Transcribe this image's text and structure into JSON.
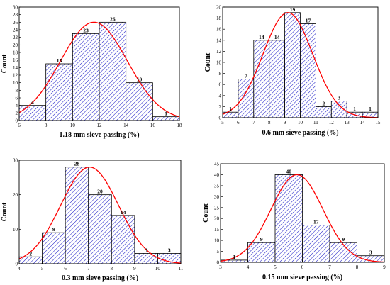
{
  "chart_data": [
    {
      "type": "bar",
      "xlabel": "1.18 mm sieve passing (%)",
      "ylabel": "Count",
      "xlim": [
        6,
        18
      ],
      "ylim": [
        0,
        30
      ],
      "xticks": [
        "6",
        "8",
        "10",
        "12",
        "14",
        "16",
        "18"
      ],
      "yticks": [
        "0",
        "2",
        "4",
        "6",
        "8",
        "10",
        "12",
        "14",
        "16",
        "18",
        "20",
        "22",
        "24",
        "26",
        "28",
        "30"
      ],
      "bins": [
        [
          6,
          8
        ],
        [
          8,
          10
        ],
        [
          10,
          12
        ],
        [
          12,
          14
        ],
        [
          14,
          16
        ],
        [
          16,
          18
        ]
      ],
      "values": [
        4,
        15,
        23,
        26,
        10,
        1
      ],
      "value_labels": [
        "4",
        "15",
        "23",
        "26",
        "10",
        "1"
      ],
      "fit_curve": {
        "type": "normal",
        "mean": 11.6,
        "sd": 2.5,
        "peak": 26,
        "color": "#ff0000"
      },
      "bar_style": {
        "fill": "hatched",
        "color": "#2020c8"
      },
      "grid": false
    },
    {
      "type": "bar",
      "xlabel": "0.6 mm sieve passing (%)",
      "ylabel": "Count",
      "xlim": [
        5,
        15
      ],
      "ylim": [
        0,
        20
      ],
      "xticks": [
        "5",
        "6",
        "7",
        "8",
        "9",
        "10",
        "11",
        "12",
        "13",
        "14",
        "15"
      ],
      "yticks": [
        "0",
        "2",
        "4",
        "6",
        "8",
        "10",
        "12",
        "14",
        "16",
        "18",
        "20"
      ],
      "bins": [
        [
          5,
          6
        ],
        [
          6,
          7
        ],
        [
          7,
          8
        ],
        [
          8,
          9
        ],
        [
          9,
          10
        ],
        [
          10,
          11
        ],
        [
          11,
          12
        ],
        [
          12,
          13
        ],
        [
          13,
          14
        ],
        [
          14,
          15
        ]
      ],
      "values": [
        1,
        7,
        14,
        14,
        19,
        17,
        2,
        3,
        1,
        1
      ],
      "value_labels": [
        "1",
        "7",
        "14",
        "14",
        "19",
        "17",
        "2",
        "3",
        "1",
        "1"
      ],
      "fit_curve": {
        "type": "normal",
        "mean": 9.2,
        "sd": 1.6,
        "peak": 19,
        "color": "#ff0000"
      },
      "bar_style": {
        "fill": "hatched",
        "color": "#2020c8"
      },
      "grid": false
    },
    {
      "type": "bar",
      "xlabel": "0.3 mm sieve passing (%)",
      "ylabel": "Count",
      "xlim": [
        4,
        11
      ],
      "ylim": [
        0,
        30
      ],
      "xticks": [
        "4",
        "5",
        "6",
        "7",
        "8",
        "9",
        "10",
        "11"
      ],
      "yticks": [
        "0",
        "10",
        "20",
        "30"
      ],
      "bins": [
        [
          4,
          5
        ],
        [
          5,
          6
        ],
        [
          6,
          7
        ],
        [
          7,
          8
        ],
        [
          8,
          9
        ],
        [
          9,
          10
        ],
        [
          10,
          11
        ]
      ],
      "values": [
        2,
        9,
        28,
        20,
        14,
        3,
        3
      ],
      "value_labels": [
        "2",
        "9",
        "28",
        "20",
        "14",
        "3",
        "3"
      ],
      "fit_curve": {
        "type": "normal",
        "mean": 7.05,
        "sd": 1.25,
        "peak": 28,
        "color": "#ff0000"
      },
      "bar_style": {
        "fill": "hatched",
        "color": "#2020c8"
      },
      "grid": false
    },
    {
      "type": "bar",
      "xlabel": "0.15 mm sieve passing (%)",
      "ylabel": "Count",
      "xlim": [
        3,
        9
      ],
      "ylim": [
        0,
        45
      ],
      "xticks": [
        "3",
        "4",
        "5",
        "6",
        "7",
        "8",
        "9"
      ],
      "yticks": [
        "0",
        "5",
        "10",
        "15",
        "20",
        "25",
        "30",
        "35",
        "40",
        "45"
      ],
      "bins": [
        [
          3,
          4
        ],
        [
          4,
          5
        ],
        [
          5,
          6
        ],
        [
          6,
          7
        ],
        [
          7,
          8
        ],
        [
          8,
          9
        ]
      ],
      "values": [
        1,
        9,
        40,
        17,
        9,
        3
      ],
      "value_labels": [
        "1",
        "9",
        "40",
        "17",
        "9",
        "3"
      ],
      "fit_curve": {
        "type": "normal",
        "mean": 5.8,
        "sd": 0.95,
        "peak": 40,
        "color": "#ff0000"
      },
      "bar_style": {
        "fill": "hatched",
        "color": "#2020c8"
      },
      "grid": false
    }
  ]
}
